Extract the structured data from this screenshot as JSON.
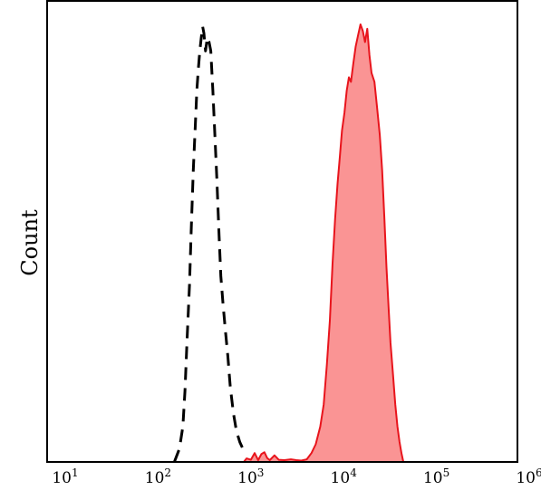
{
  "chart_data": {
    "type": "area",
    "xscale": "log",
    "xlim": [
      10,
      1000000
    ],
    "ylim": [
      0,
      1.0
    ],
    "xlabel": "",
    "ylabel": "Count",
    "x_ticks": [
      {
        "value": 10,
        "base": "10",
        "exp": "1"
      },
      {
        "value": 100,
        "base": "10",
        "exp": "2"
      },
      {
        "value": 1000,
        "base": "10",
        "exp": "3"
      },
      {
        "value": 10000,
        "base": "10",
        "exp": "4"
      },
      {
        "value": 100000,
        "base": "10",
        "exp": "5"
      },
      {
        "value": 1000000,
        "base": "10",
        "exp": "6"
      }
    ],
    "grid": false,
    "legend": "none",
    "series": [
      {
        "style": "dashed-line",
        "color": "#000000",
        "points": [
          [
            150,
            0.0
          ],
          [
            170,
            0.03
          ],
          [
            185,
            0.08
          ],
          [
            195,
            0.16
          ],
          [
            205,
            0.27
          ],
          [
            218,
            0.4
          ],
          [
            228,
            0.53
          ],
          [
            240,
            0.66
          ],
          [
            252,
            0.76
          ],
          [
            262,
            0.84
          ],
          [
            272,
            0.89
          ],
          [
            282,
            0.93
          ],
          [
            292,
            0.96
          ],
          [
            302,
            0.985
          ],
          [
            312,
            0.97
          ],
          [
            325,
            0.93
          ],
          [
            340,
            0.96
          ],
          [
            355,
            0.95
          ],
          [
            370,
            0.93
          ],
          [
            390,
            0.84
          ],
          [
            410,
            0.74
          ],
          [
            430,
            0.64
          ],
          [
            455,
            0.51
          ],
          [
            475,
            0.42
          ],
          [
            500,
            0.36
          ],
          [
            530,
            0.3
          ],
          [
            565,
            0.24
          ],
          [
            600,
            0.17
          ],
          [
            650,
            0.11
          ],
          [
            700,
            0.07
          ],
          [
            760,
            0.045
          ],
          [
            820,
            0.03
          ],
          [
            880,
            0.02
          ]
        ]
      },
      {
        "style": "filled-area",
        "color": "#e8141c",
        "fill": "#fa9494",
        "points": [
          [
            840,
            0.0
          ],
          [
            900,
            0.008
          ],
          [
            1000,
            0.005
          ],
          [
            1100,
            0.02
          ],
          [
            1200,
            0.004
          ],
          [
            1300,
            0.018
          ],
          [
            1400,
            0.022
          ],
          [
            1500,
            0.009
          ],
          [
            1600,
            0.004
          ],
          [
            1800,
            0.015
          ],
          [
            2000,
            0.005
          ],
          [
            2300,
            0.004
          ],
          [
            2700,
            0.006
          ],
          [
            3100,
            0.004
          ],
          [
            3500,
            0.003
          ],
          [
            4000,
            0.006
          ],
          [
            4500,
            0.02
          ],
          [
            5000,
            0.04
          ],
          [
            5600,
            0.08
          ],
          [
            6100,
            0.13
          ],
          [
            6600,
            0.22
          ],
          [
            7100,
            0.32
          ],
          [
            7600,
            0.45
          ],
          [
            8100,
            0.55
          ],
          [
            8600,
            0.63
          ],
          [
            9100,
            0.69
          ],
          [
            9600,
            0.75
          ],
          [
            10200,
            0.79
          ],
          [
            10800,
            0.84
          ],
          [
            11400,
            0.87
          ],
          [
            12000,
            0.86
          ],
          [
            12700,
            0.9
          ],
          [
            13500,
            0.94
          ],
          [
            14300,
            0.965
          ],
          [
            15200,
            0.99
          ],
          [
            16100,
            0.975
          ],
          [
            17000,
            0.95
          ],
          [
            18000,
            0.98
          ],
          [
            19000,
            0.92
          ],
          [
            20000,
            0.88
          ],
          [
            21500,
            0.86
          ],
          [
            23000,
            0.8
          ],
          [
            24500,
            0.74
          ],
          [
            26000,
            0.66
          ],
          [
            27500,
            0.55
          ],
          [
            29000,
            0.44
          ],
          [
            30500,
            0.35
          ],
          [
            32000,
            0.27
          ],
          [
            34000,
            0.2
          ],
          [
            36000,
            0.13
          ],
          [
            38000,
            0.08
          ],
          [
            40000,
            0.045
          ],
          [
            42000,
            0.02
          ],
          [
            44000,
            0.0
          ]
        ]
      }
    ]
  }
}
